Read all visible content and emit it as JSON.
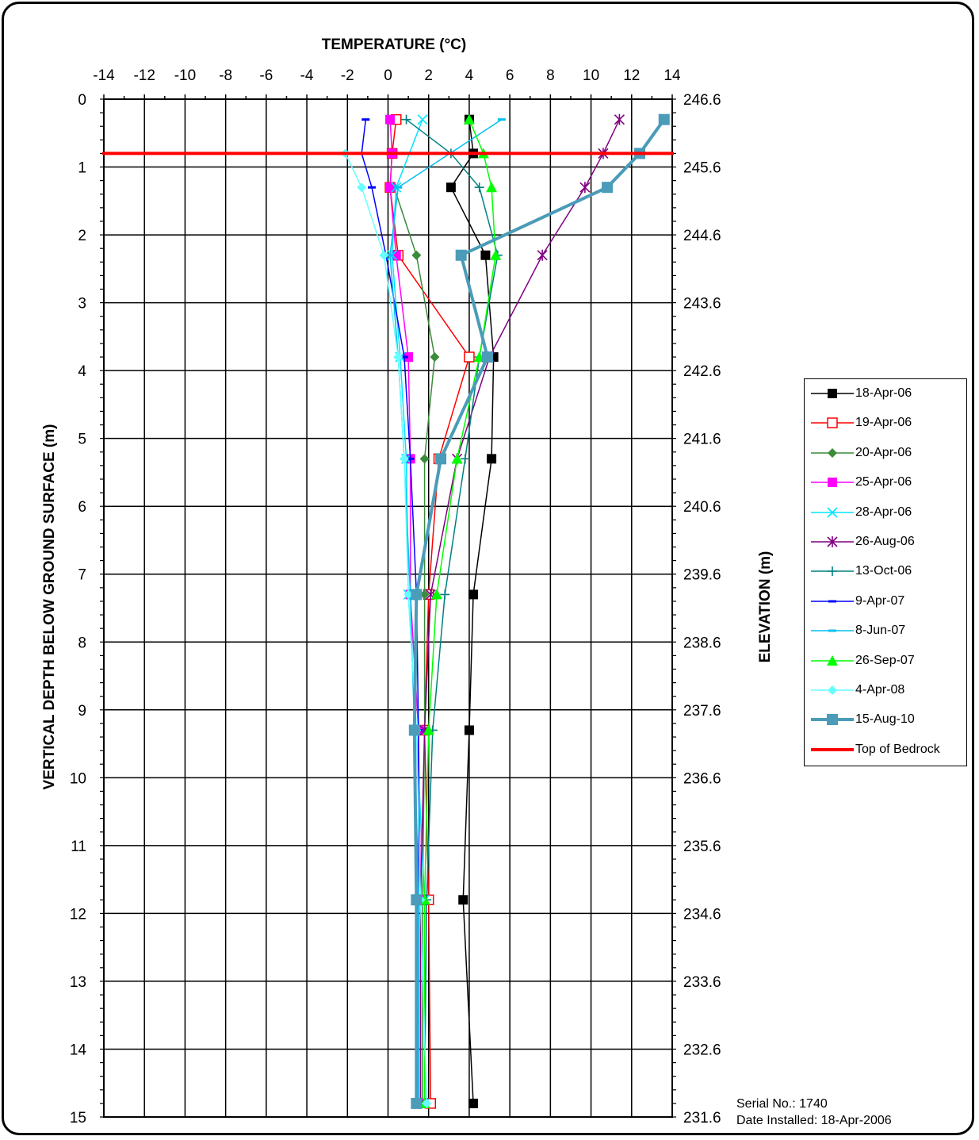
{
  "chart_data": {
    "type": "line",
    "title": "TEMPERATURE (°C)",
    "xlabel": "TEMPERATURE (°C)",
    "ylabel": "VERTICAL DEPTH BELOW GROUND SURFACE (m)",
    "y2label": "ELEVATION (m)",
    "xlim": [
      -14,
      14
    ],
    "ylim": [
      0,
      15
    ],
    "y_inverted": true,
    "x_ticks": [
      "-14",
      "-12",
      "-10",
      "-8",
      "-6",
      "-4",
      "-2",
      "0",
      "2",
      "4",
      "6",
      "8",
      "10",
      "12",
      "14"
    ],
    "y_ticks": [
      "0",
      "1",
      "2",
      "3",
      "4",
      "5",
      "6",
      "7",
      "8",
      "9",
      "10",
      "11",
      "12",
      "13",
      "14",
      "15"
    ],
    "y2_ticks": [
      "246.6",
      "245.6",
      "244.6",
      "243.6",
      "242.6",
      "241.6",
      "240.6",
      "239.6",
      "238.6",
      "237.6",
      "236.6",
      "235.6",
      "234.6",
      "233.6",
      "232.6",
      "231.6"
    ],
    "grid": true,
    "legend_position": "right",
    "depths": [
      0.3,
      0.8,
      1.3,
      2.3,
      3.8,
      5.3,
      7.3,
      9.3,
      11.8,
      14.8
    ],
    "series": [
      {
        "name": "18-Apr-06",
        "color": "#000000",
        "marker": "square",
        "width": 1.5,
        "temps": [
          4.0,
          4.2,
          3.1,
          4.8,
          5.2,
          5.1,
          4.2,
          4.0,
          3.7,
          4.2
        ]
      },
      {
        "name": "19-Apr-06",
        "color": "#ff0000",
        "marker": "square-open",
        "width": 1.5,
        "temps": [
          0.4,
          0.2,
          0.1,
          0.5,
          4.0,
          2.5,
          2.0,
          1.8,
          2.0,
          2.1
        ]
      },
      {
        "name": "20-Apr-06",
        "color": "#3a8c3a",
        "marker": "diamond",
        "width": 1.5,
        "temps": [
          null,
          null,
          0.3,
          1.4,
          2.3,
          1.8,
          1.8,
          1.8,
          1.7,
          1.7
        ]
      },
      {
        "name": "25-Apr-06",
        "color": "#ff00ff",
        "marker": "square",
        "width": 1.5,
        "temps": [
          0.1,
          0.2,
          0.1,
          0.4,
          1.0,
          1.1,
          1.1,
          1.5,
          1.6,
          1.6
        ]
      },
      {
        "name": "28-Apr-06",
        "color": "#00e5ff",
        "marker": "x",
        "width": 1.5,
        "temps": [
          1.7,
          null,
          0.4,
          0.2,
          0.6,
          0.9,
          1.0,
          1.4,
          1.8,
          1.8
        ]
      },
      {
        "name": "26-Aug-06",
        "color": "#800080",
        "marker": "star",
        "width": 1.5,
        "temps": [
          11.4,
          10.6,
          9.7,
          7.6,
          5.0,
          3.4,
          2.1,
          1.8,
          1.6,
          1.6
        ]
      },
      {
        "name": "13-Oct-06",
        "color": "#008080",
        "marker": "plus",
        "width": 1.5,
        "temps": [
          0.9,
          3.1,
          4.5,
          5.4,
          4.5,
          3.8,
          2.8,
          2.2,
          1.9,
          1.8
        ]
      },
      {
        "name": "9-Apr-07",
        "color": "#0000ff",
        "marker": "dash",
        "width": 1.5,
        "temps": [
          -1.1,
          -1.3,
          -0.8,
          -0.1,
          0.8,
          1.1,
          1.4,
          1.5,
          1.5,
          1.5
        ]
      },
      {
        "name": "8-Jun-07",
        "color": "#00c0f0",
        "marker": "dash",
        "width": 1.5,
        "temps": [
          5.6,
          null,
          0.5,
          0.1,
          0.5,
          0.8,
          1.1,
          1.3,
          1.5,
          1.5
        ]
      },
      {
        "name": "26-Sep-07",
        "color": "#00ff00",
        "marker": "triangle",
        "width": 1.5,
        "temps": [
          4.0,
          4.7,
          5.1,
          5.3,
          4.5,
          3.4,
          2.4,
          2.0,
          1.8,
          1.8
        ]
      },
      {
        "name": "4-Apr-08",
        "color": "#66ffff",
        "marker": "diamond",
        "width": 1.5,
        "temps": [
          null,
          -2.1,
          -1.3,
          -0.2,
          0.5,
          0.8,
          1.0,
          1.4,
          1.6,
          1.9
        ]
      },
      {
        "name": "15-Aug-10",
        "color": "#4a9cb8",
        "marker": "square",
        "width": 4,
        "temps": [
          13.6,
          12.4,
          10.8,
          3.6,
          4.9,
          2.6,
          1.4,
          1.3,
          1.4,
          1.4
        ]
      }
    ],
    "reference_lines": [
      {
        "name": "Top of Bedrock",
        "color": "#ff0000",
        "depth": 0.8
      }
    ]
  },
  "footer": {
    "serial": "Serial No.:  1740",
    "installed": "Date Installed:  18-Apr-2006"
  }
}
